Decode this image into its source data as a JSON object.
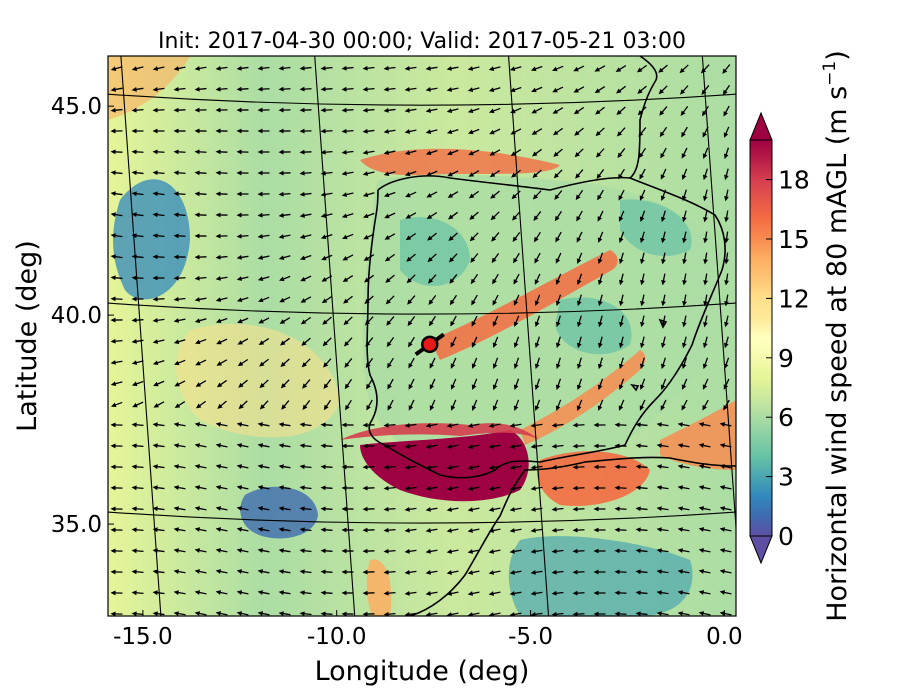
{
  "chart_data": {
    "type": "heatmap",
    "title": "Init: 2017-04-30 00:00; Valid: 2017-05-21 03:00",
    "xlabel": "Longitude (deg)",
    "ylabel": "Latitude (deg)",
    "xlim": [
      -15.9,
      0.3
    ],
    "ylim": [
      32.8,
      46.2
    ],
    "x_ticks": [
      -15.0,
      -10.0,
      -5.0,
      0.0
    ],
    "x_tick_labels": [
      "-15.0",
      "-10.0",
      "-5.0",
      "0.0"
    ],
    "y_ticks": [
      35.0,
      40.0,
      45.0
    ],
    "y_tick_labels": [
      "35.0",
      "40.0",
      "45.0"
    ],
    "grid": true,
    "colorbar": {
      "label": "Horizontal wind speed at 80 mAGL (m s$^{-1}$)",
      "label_main": "Horizontal wind speed at 80 mAGL (m s",
      "label_sup": "−1",
      "label_end": ")",
      "range": [
        0,
        20
      ],
      "ticks": [
        0,
        3,
        6,
        9,
        12,
        15,
        18
      ],
      "tick_labels": [
        "0",
        "3",
        "6",
        "9",
        "12",
        "15",
        "18"
      ],
      "extend": "both",
      "colormap": "Spectral_r",
      "colors": [
        "#5e4fa2",
        "#3f6bb0",
        "#3288bd",
        "#4ba6b1",
        "#66c2a5",
        "#88cfa4",
        "#abdda4",
        "#cbe99e",
        "#e6f598",
        "#f4faad",
        "#ffffbf",
        "#fee99a",
        "#fee08b",
        "#fdc574",
        "#fdae61",
        "#f88c51",
        "#f46d43",
        "#e6564a",
        "#d53e4f",
        "#b81d48",
        "#9e0142"
      ]
    },
    "marker": {
      "lon": -7.6,
      "lat": 39.3,
      "color": "#e8191b"
    },
    "wind_field": {
      "units": "m s-1",
      "arrow_color": "#000000"
    }
  }
}
